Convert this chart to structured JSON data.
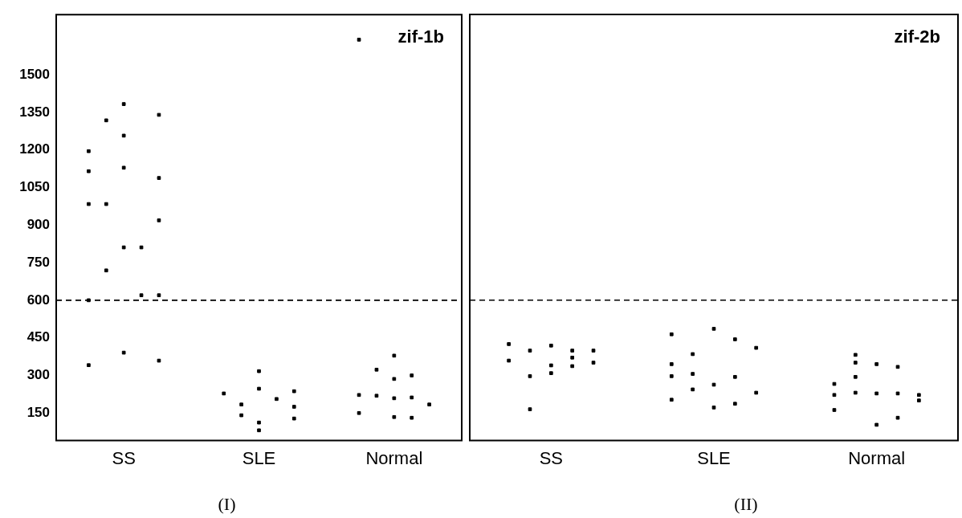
{
  "chart_data": [
    {
      "type": "scatter",
      "title": "zif-1b",
      "categories": [
        "SS",
        "SLE",
        "Normal"
      ],
      "ylim": [
        40,
        1740
      ],
      "yticks": [
        150,
        300,
        450,
        600,
        750,
        900,
        1050,
        1200,
        1350,
        1500
      ],
      "grid": false,
      "legend": false,
      "marker": "square",
      "annotations": [
        "(I)"
      ],
      "ref_lines": [
        {
          "axis": "y",
          "value": 600,
          "line_style": "dashed",
          "color": "#000000"
        }
      ],
      "series": [
        {
          "color": "#000000",
          "x": [
            "SS",
            "SS",
            "SS",
            "SS",
            "SS",
            "SLE",
            "Normal",
            "Normal",
            "Normal"
          ],
          "values": [
            1195,
            1115,
            984,
            600,
            341,
            228,
            222,
            150,
            1640
          ]
        },
        {
          "color": "#000000",
          "x": [
            "SS",
            "SS",
            "SS",
            "SLE",
            "SLE",
            "Normal",
            "Normal"
          ],
          "values": [
            1318,
            984,
            719,
            184,
            141,
            323,
            219
          ]
        },
        {
          "color": "#000000",
          "x": [
            "SS",
            "SS",
            "SS",
            "SS",
            "SS",
            "SLE",
            "SLE",
            "SLE",
            "SLE",
            "Normal",
            "Normal",
            "Normal",
            "Normal"
          ],
          "values": [
            1383,
            1257,
            1129,
            811,
            391,
            317,
            247,
            112,
            81,
            379,
            286,
            209,
            134
          ]
        },
        {
          "color": "#000000",
          "x": [
            "SS",
            "SS",
            "SLE",
            "Normal",
            "Normal",
            "Normal"
          ],
          "values": [
            811,
            620,
            206,
            300,
            212,
            131
          ]
        },
        {
          "color": "#000000",
          "x": [
            "SS",
            "SS",
            "SS",
            "SS",
            "SS",
            "SLE",
            "SLE",
            "SLE",
            "Normal"
          ],
          "values": [
            1340,
            1088,
            919,
            620,
            359,
            237,
            175,
            128,
            184
          ]
        }
      ]
    },
    {
      "type": "scatter",
      "title": "zif-2b",
      "categories": [
        "SS",
        "SLE",
        "Normal"
      ],
      "ylim": [
        40,
        1740
      ],
      "yticks": [
        150,
        300,
        450,
        600,
        750,
        900,
        1050,
        1200,
        1350,
        1500
      ],
      "tick_labels": "x",
      "grid": false,
      "legend": false,
      "marker": "square",
      "annotations": [
        "(II)"
      ],
      "ref_lines": [
        {
          "axis": "y",
          "value": 600,
          "line_style": "dashed",
          "color": "#000000"
        }
      ],
      "series": [
        {
          "color": "#000000",
          "x": [
            "SS",
            "SS",
            "SLE",
            "SLE",
            "SLE",
            "SLE",
            "Normal",
            "Normal",
            "Normal"
          ],
          "values": [
            425,
            359,
            464,
            345,
            297,
            203,
            266,
            162,
            222
          ]
        },
        {
          "color": "#000000",
          "x": [
            "SS",
            "SS",
            "SS",
            "SLE",
            "SLE",
            "SLE",
            "Normal",
            "Normal",
            "Normal",
            "Normal"
          ],
          "values": [
            399,
            297,
            165,
            385,
            306,
            244,
            382,
            351,
            294,
            231
          ]
        },
        {
          "color": "#000000",
          "x": [
            "SS",
            "SS",
            "SS",
            "SLE",
            "SLE",
            "SLE",
            "Normal",
            "Normal",
            "Normal"
          ],
          "values": [
            419,
            340,
            309,
            486,
            263,
            172,
            345,
            228,
            103
          ]
        },
        {
          "color": "#000000",
          "x": [
            "SS",
            "SS",
            "SS",
            "SLE",
            "SLE",
            "SLE",
            "Normal",
            "Normal",
            "Normal"
          ],
          "values": [
            399,
            371,
            337,
            444,
            294,
            187,
            334,
            228,
            131
          ]
        },
        {
          "color": "#000000",
          "x": [
            "SS",
            "SS",
            "SLE",
            "SLE",
            "Normal",
            "Normal"
          ],
          "values": [
            399,
            351,
            410,
            231,
            200,
            222
          ]
        }
      ]
    }
  ]
}
